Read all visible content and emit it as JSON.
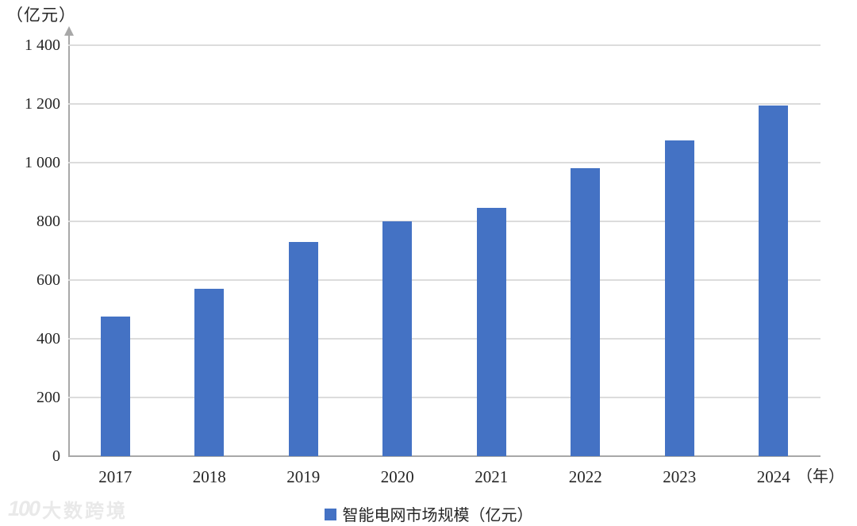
{
  "chart_data": {
    "type": "bar",
    "title": "",
    "y_unit_label": "（亿元）",
    "x_unit_label": "（年）",
    "categories": [
      "2017",
      "2018",
      "2019",
      "2020",
      "2021",
      "2022",
      "2023",
      "2024"
    ],
    "values": [
      475,
      570,
      730,
      800,
      845,
      980,
      1075,
      1195
    ],
    "series_name": "智能电网市场规模（亿元）",
    "ylim": [
      0,
      1400
    ],
    "ytick_interval": 200,
    "ytick_labels": [
      "0",
      "200",
      "400",
      "600",
      "800",
      "1 000",
      "1 200",
      "1 400"
    ],
    "grid": true,
    "legend_position": "bottom",
    "bar_color": "#4472C4"
  },
  "legend": {
    "label": "智能电网市场规模（亿元）",
    "swatch_color": "#4472C4"
  },
  "watermark": {
    "logo_text": "100",
    "text": "大数跨境"
  },
  "colors": {
    "bar": "#4472C4",
    "axis": "#a8a8a8",
    "gridline": "#dcdcdc",
    "text": "#262626",
    "watermark": "#e9e9e9"
  }
}
